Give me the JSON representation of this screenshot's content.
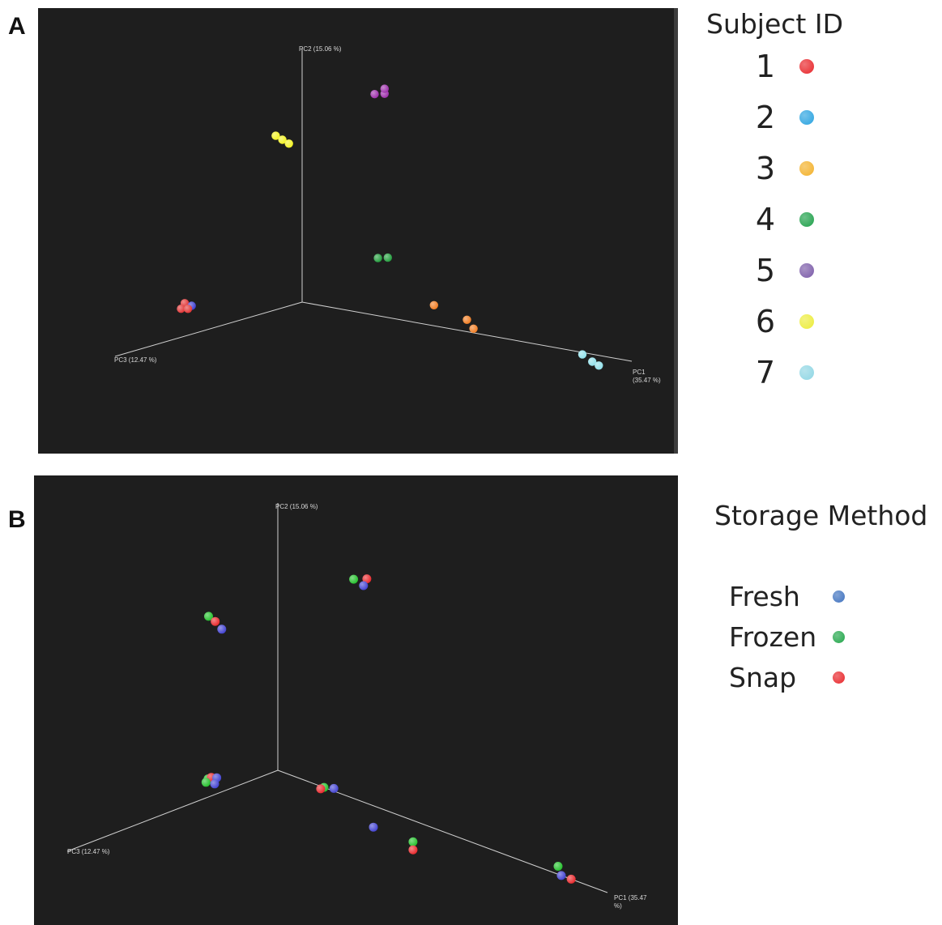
{
  "panels": {
    "a": {
      "letter": "A"
    },
    "b": {
      "letter": "B"
    }
  },
  "legend_a": {
    "title": "Subject ID",
    "items": [
      {
        "label": "1",
        "color": "#e8262a"
      },
      {
        "label": "2",
        "color": "#2aa3e0"
      },
      {
        "label": "3",
        "color": "#f3b12a"
      },
      {
        "label": "4",
        "color": "#1fa04a"
      },
      {
        "label": "5",
        "color": "#7a5aa8"
      },
      {
        "label": "6",
        "color": "#ecec3a"
      },
      {
        "label": "7",
        "color": "#8fd6e4"
      }
    ]
  },
  "legend_b": {
    "title": "Storage Method",
    "items": [
      {
        "label": "Fresh",
        "color": "#3f72bf"
      },
      {
        "label": "Frozen",
        "color": "#22a64a"
      },
      {
        "label": "Snap",
        "color": "#e8262a"
      }
    ]
  },
  "chart_data": [
    {
      "type": "scatter",
      "panel": "A",
      "projection": "3D PCoA",
      "axes": [
        {
          "name": "PC1",
          "label_lines": [
            "PC1",
            "(35.47 %)"
          ]
        },
        {
          "name": "PC2",
          "label_lines": [
            "PC2 (15.06 %)"
          ]
        },
        {
          "name": "PC3",
          "label_lines": [
            "PC3 (12.47 %)"
          ]
        }
      ],
      "legend_title": "Subject ID",
      "points": [
        {
          "group": "1",
          "color": "#e03030",
          "pc1": -0.02,
          "pc2": 0.06,
          "pc3": 0.3
        },
        {
          "group": "1",
          "color": "#3a3ad0",
          "pc1": -0.01,
          "pc2": 0.05,
          "pc3": 0.29
        },
        {
          "group": "1",
          "color": "#e03030",
          "pc1": -0.02,
          "pc2": 0.04,
          "pc3": 0.31
        },
        {
          "group": "1",
          "color": "#e03030",
          "pc1": -0.01,
          "pc2": 0.04,
          "pc3": 0.3
        },
        {
          "group": "2",
          "color": "#8fe0ea",
          "pc1": 0.85,
          "pc2": 0.03,
          "pc3": 0.0
        },
        {
          "group": "2",
          "color": "#8fe0ea",
          "pc1": 0.88,
          "pc2": 0.01,
          "pc3": 0.0
        },
        {
          "group": "2",
          "color": "#8fe0ea",
          "pc1": 0.9,
          "pc2": 0.0,
          "pc3": 0.0
        },
        {
          "group": "3",
          "color": "#f07a1e",
          "pc1": 0.4,
          "pc2": 0.1,
          "pc3": 0.0
        },
        {
          "group": "3",
          "color": "#f07a1e",
          "pc1": 0.5,
          "pc2": 0.07,
          "pc3": 0.0
        },
        {
          "group": "3",
          "color": "#f07a1e",
          "pc1": 0.52,
          "pc2": 0.04,
          "pc3": 0.0
        },
        {
          "group": "4",
          "color": "#1f9c3a",
          "pc1": 0.23,
          "pc2": 0.24,
          "pc3": 0.0
        },
        {
          "group": "4",
          "color": "#1f9c3a",
          "pc1": 0.26,
          "pc2": 0.25,
          "pc3": 0.0
        },
        {
          "group": "5",
          "color": "#9a2aa8",
          "pc1": 0.22,
          "pc2": 0.89,
          "pc3": 0.0
        },
        {
          "group": "5",
          "color": "#9a2aa8",
          "pc1": 0.25,
          "pc2": 0.9,
          "pc3": 0.0
        },
        {
          "group": "5",
          "color": "#9a2aa8",
          "pc1": 0.25,
          "pc2": 0.92,
          "pc3": 0.0
        },
        {
          "group": "6",
          "color": "#f2f21e",
          "pc1": -0.08,
          "pc2": 0.64,
          "pc3": 0.0
        },
        {
          "group": "6",
          "color": "#f2f21e",
          "pc1": -0.06,
          "pc2": 0.63,
          "pc3": 0.0
        },
        {
          "group": "6",
          "color": "#f2f21e",
          "pc1": -0.04,
          "pc2": 0.62,
          "pc3": 0.0
        }
      ]
    },
    {
      "type": "scatter",
      "panel": "B",
      "projection": "3D PCoA",
      "axes": [
        {
          "name": "PC1",
          "label_lines": [
            "PC1 (35.47",
            "%)"
          ]
        },
        {
          "name": "PC2",
          "label_lines": [
            "PC2 (15.06 %)"
          ]
        },
        {
          "name": "PC3",
          "label_lines": [
            "PC3 (12.47 %)"
          ]
        }
      ],
      "legend_title": "Storage Method",
      "points": [
        {
          "group": "Frozen",
          "color": "#22c02a",
          "pc1": 0.23,
          "pc2": 0.82,
          "pc3": 0.0
        },
        {
          "group": "Snap",
          "color": "#e8262a",
          "pc1": 0.27,
          "pc2": 0.84,
          "pc3": 0.0
        },
        {
          "group": "Fresh",
          "color": "#4040d0",
          "pc1": 0.26,
          "pc2": 0.81,
          "pc3": 0.0
        },
        {
          "group": "Frozen",
          "color": "#22c02a",
          "pc1": -0.21,
          "pc2": 0.48,
          "pc3": 0.0
        },
        {
          "group": "Snap",
          "color": "#e8262a",
          "pc1": -0.19,
          "pc2": 0.47,
          "pc3": 0.0
        },
        {
          "group": "Fresh",
          "color": "#4040d0",
          "pc1": -0.17,
          "pc2": 0.45,
          "pc3": 0.0
        },
        {
          "group": "Frozen",
          "color": "#22c02a",
          "pc1": -0.02,
          "pc2": 0.05,
          "pc3": 0.3
        },
        {
          "group": "Snap",
          "color": "#e8262a",
          "pc1": -0.01,
          "pc2": 0.06,
          "pc3": 0.3
        },
        {
          "group": "Fresh",
          "color": "#4040d0",
          "pc1": 0.0,
          "pc2": 0.06,
          "pc3": 0.29
        },
        {
          "group": "Frozen",
          "color": "#22c02a",
          "pc1": -0.02,
          "pc2": 0.04,
          "pc3": 0.31
        },
        {
          "group": "Fresh",
          "color": "#4040d0",
          "pc1": 0.0,
          "pc2": 0.04,
          "pc3": 0.3
        },
        {
          "group": "Frozen",
          "color": "#22c02a",
          "pc1": 0.14,
          "pc2": 0.0,
          "pc3": 0.0
        },
        {
          "group": "Snap",
          "color": "#e8262a",
          "pc1": 0.13,
          "pc2": -0.01,
          "pc3": 0.0
        },
        {
          "group": "Fresh",
          "color": "#4040d0",
          "pc1": 0.17,
          "pc2": 0.01,
          "pc3": 0.0
        },
        {
          "group": "Fresh",
          "color": "#4040d0",
          "pc1": 0.29,
          "pc2": -0.08,
          "pc3": 0.0
        },
        {
          "group": "Frozen",
          "color": "#22c02a",
          "pc1": 0.41,
          "pc2": -0.08,
          "pc3": 0.0
        },
        {
          "group": "Snap",
          "color": "#e8262a",
          "pc1": 0.41,
          "pc2": -0.11,
          "pc3": 0.0
        },
        {
          "group": "Frozen",
          "color": "#22c02a",
          "pc1": 0.85,
          "pc2": 0.03,
          "pc3": 0.0
        },
        {
          "group": "Fresh",
          "color": "#4040d0",
          "pc1": 0.86,
          "pc2": 0.0,
          "pc3": 0.0
        },
        {
          "group": "Snap",
          "color": "#e8262a",
          "pc1": 0.89,
          "pc2": 0.0,
          "pc3": 0.0
        }
      ]
    }
  ]
}
